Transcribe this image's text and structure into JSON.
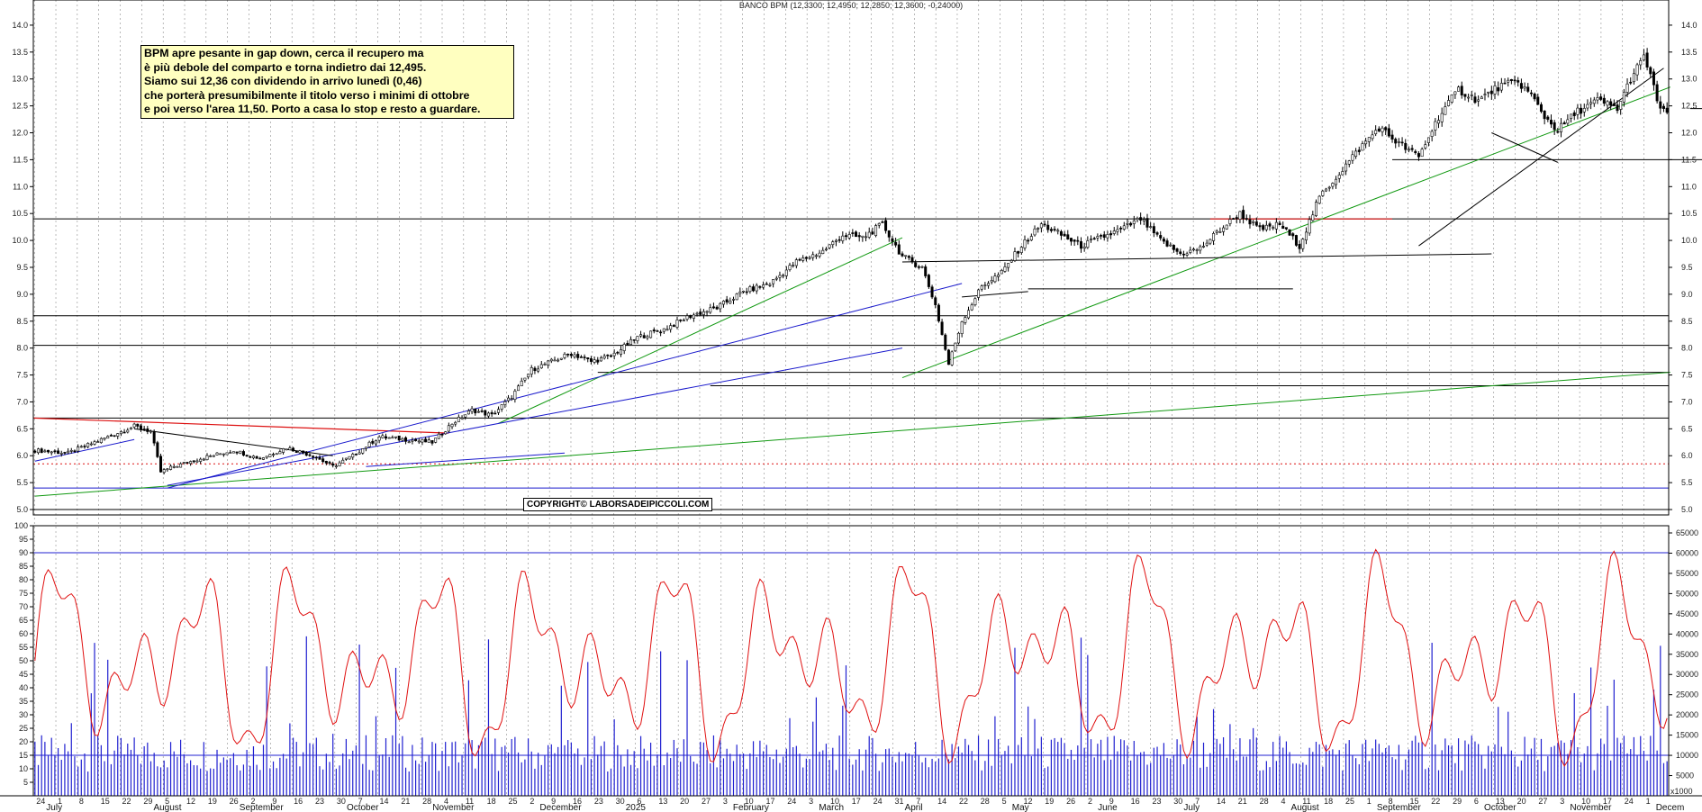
{
  "chart_data": {
    "type": "candlestick",
    "title": "BANCO BPM (12,3300; 12,4950; 12,2850; 12,3600; -0,24000)",
    "price_panel": {
      "ylim": [
        4.9,
        14.3
      ],
      "y_ticks": [
        "5.0",
        "5.5",
        "6.0",
        "6.5",
        "7.0",
        "7.5",
        "8.0",
        "8.5",
        "9.0",
        "9.5",
        "10.0",
        "10.5",
        "11.0",
        "11.5",
        "12.0",
        "12.5",
        "13.0",
        "13.5",
        "14.0"
      ],
      "y_tick_values": [
        5.0,
        5.5,
        6.0,
        6.5,
        7.0,
        7.5,
        8.0,
        8.5,
        9.0,
        9.5,
        10.0,
        10.5,
        11.0,
        11.5,
        12.0,
        12.5,
        13.0,
        13.5,
        14.0
      ],
      "close_path": [
        [
          0,
          6.1
        ],
        [
          10,
          6.05
        ],
        [
          20,
          6.3
        ],
        [
          30,
          6.55
        ],
        [
          35,
          6.45
        ],
        [
          38,
          5.7
        ],
        [
          42,
          5.8
        ],
        [
          50,
          5.95
        ],
        [
          60,
          6.1
        ],
        [
          68,
          5.95
        ],
        [
          76,
          6.15
        ],
        [
          84,
          6.0
        ],
        [
          90,
          5.8
        ],
        [
          96,
          6.0
        ],
        [
          104,
          6.35
        ],
        [
          112,
          6.3
        ],
        [
          120,
          6.25
        ],
        [
          126,
          6.6
        ],
        [
          132,
          6.85
        ],
        [
          138,
          6.75
        ],
        [
          144,
          7.1
        ],
        [
          150,
          7.6
        ],
        [
          156,
          7.75
        ],
        [
          162,
          7.9
        ],
        [
          168,
          7.75
        ],
        [
          174,
          7.85
        ],
        [
          182,
          8.2
        ],
        [
          190,
          8.35
        ],
        [
          198,
          8.6
        ],
        [
          206,
          8.75
        ],
        [
          214,
          9.05
        ],
        [
          222,
          9.2
        ],
        [
          230,
          9.6
        ],
        [
          238,
          9.8
        ],
        [
          244,
          10.1
        ],
        [
          250,
          10.05
        ],
        [
          256,
          10.3
        ],
        [
          262,
          9.7
        ],
        [
          268,
          9.5
        ],
        [
          272,
          8.8
        ],
        [
          276,
          7.7
        ],
        [
          280,
          8.5
        ],
        [
          286,
          9.15
        ],
        [
          292,
          9.4
        ],
        [
          298,
          9.9
        ],
        [
          304,
          10.3
        ],
        [
          310,
          10.1
        ],
        [
          316,
          9.9
        ],
        [
          322,
          10.05
        ],
        [
          328,
          10.2
        ],
        [
          334,
          10.4
        ],
        [
          340,
          10.0
        ],
        [
          346,
          9.75
        ],
        [
          352,
          9.85
        ],
        [
          358,
          10.2
        ],
        [
          364,
          10.5
        ],
        [
          370,
          10.2
        ],
        [
          376,
          10.3
        ],
        [
          382,
          9.9
        ],
        [
          388,
          10.8
        ],
        [
          394,
          11.25
        ],
        [
          400,
          11.7
        ],
        [
          406,
          12.1
        ],
        [
          412,
          11.8
        ],
        [
          418,
          11.55
        ],
        [
          424,
          12.3
        ],
        [
          430,
          12.8
        ],
        [
          436,
          12.6
        ],
        [
          442,
          12.85
        ],
        [
          448,
          12.95
        ],
        [
          452,
          12.7
        ],
        [
          456,
          12.3
        ],
        [
          460,
          12.05
        ],
        [
          466,
          12.4
        ],
        [
          472,
          12.6
        ],
        [
          478,
          12.45
        ],
        [
          482,
          13.0
        ],
        [
          486,
          13.4
        ],
        [
          488,
          13.1
        ],
        [
          490,
          12.55
        ],
        [
          492,
          12.45
        ],
        [
          493,
          12.36
        ]
      ],
      "annotation": [
        "BPM apre pesante in gap down, cerca il recupero ma",
        "è più debole del comparto e torna indietro dai 12,495.",
        "Siamo sui 12,36 con dividendo in arrivo lunedì  (0,46)",
        "che porterà presumibilmente il titolo verso i minimi di ottobre",
        "e poi verso l'area 11,50. Porto a casa lo stop e resto a guardare."
      ],
      "copyright": "COPYRIGHT© LABORSADEIPICCOLI.COM",
      "horizontal_levels": [
        5.0,
        5.4,
        6.7,
        7.3,
        7.55,
        8.05,
        8.6,
        9.1,
        10.4,
        11.5,
        12.45
      ],
      "red_resistance": 10.4,
      "red_dotted": 5.85
    },
    "oscillator_panel": {
      "ylim_left": [
        0,
        100
      ],
      "left_ticks": [
        "5",
        "10",
        "15",
        "20",
        "25",
        "30",
        "35",
        "40",
        "45",
        "50",
        "55",
        "60",
        "65",
        "70",
        "75",
        "80",
        "85",
        "90",
        "95",
        "100"
      ],
      "right_ticks": [
        "5000",
        "10000",
        "15000",
        "20000",
        "25000",
        "30000",
        "35000",
        "40000",
        "45000",
        "50000",
        "55000",
        "60000",
        "65000"
      ],
      "overbought": 90,
      "oversold": 15,
      "oscillator_color": "#e01010",
      "volume_color": "#2020d0"
    },
    "x_axis": {
      "day_labels": [
        "24",
        "1",
        "8",
        "15",
        "22",
        "29",
        "5",
        "12",
        "19",
        "26",
        "2",
        "9",
        "16",
        "23",
        "30",
        "7",
        "14",
        "21",
        "28",
        "4",
        "11",
        "18",
        "25",
        "2",
        "9",
        "16",
        "23",
        "30",
        "6",
        "13",
        "20",
        "27",
        "3",
        "10",
        "17",
        "24",
        "3",
        "10",
        "17",
        "24",
        "31",
        "7",
        "14",
        "22",
        "28",
        "5",
        "12",
        "19",
        "26",
        "2",
        "9",
        "16",
        "23",
        "30",
        "7",
        "14",
        "21",
        "28",
        "4",
        "11",
        "18",
        "25",
        "1",
        "8",
        "15",
        "22",
        "29",
        "6",
        "13",
        "20",
        "27",
        "3",
        "10",
        "17",
        "24",
        "1"
      ],
      "month_labels": [
        "July",
        "August",
        "September",
        "October",
        "November",
        "December",
        "2025",
        "February",
        "March",
        "April",
        "May",
        "June",
        "July",
        "August",
        "September",
        "October",
        "November",
        "Decem"
      ],
      "volume_unit": "x1000"
    },
    "colors": {
      "uptrend_green": "#119911",
      "trend_blue": "#1a1acc",
      "resistance_red": "#dd1111",
      "support_black": "#000000",
      "annotation_bg": "#ffffc0"
    }
  }
}
